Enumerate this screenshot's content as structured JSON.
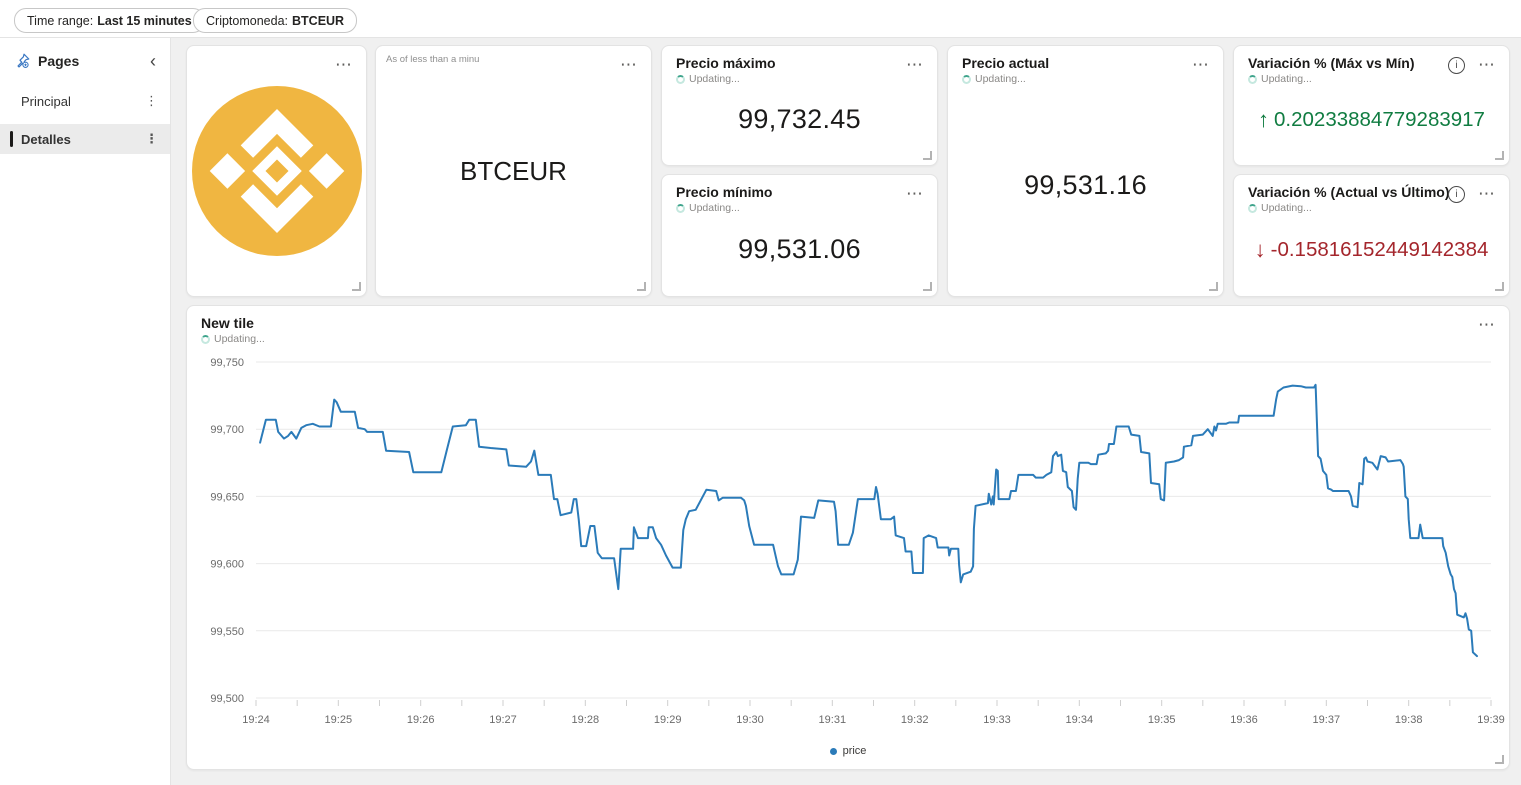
{
  "topbar": {
    "filters": [
      {
        "label": "Time range:",
        "value": "Last 15 minutes"
      },
      {
        "label": "Criptomoneda:",
        "value": "BTCEUR"
      }
    ]
  },
  "sidebar": {
    "title": "Pages",
    "collapse_icon": "‹",
    "item_menu_icon": "⋮",
    "items": [
      {
        "label": "Principal",
        "selected": false
      },
      {
        "label": "Detalles",
        "selected": true
      }
    ]
  },
  "icons": {
    "more_options": "⋯",
    "info": "i"
  },
  "colors": {
    "binance_yellow": "#F0B641",
    "line_blue": "#2b7bb9",
    "positive_green": "#107C41",
    "negative_red": "#A4262C"
  },
  "tiles": {
    "logo": {
      "name": "binance-logo"
    },
    "symbol": {
      "as_of": "As of less than a minu",
      "value": "BTCEUR"
    },
    "max": {
      "title": "Precio máximo",
      "status": "Updating...",
      "value": "99,732.45"
    },
    "min": {
      "title": "Precio mínimo",
      "status": "Updating...",
      "value": "99,531.06"
    },
    "actual": {
      "title": "Precio actual",
      "status": "Updating...",
      "value": "99,531.16"
    },
    "var_max_min": {
      "title": "Variación % (Máx vs Mín)",
      "status": "Updating...",
      "arrow": "↑",
      "value": "0.20233884779283917",
      "color": "#107C41"
    },
    "var_actual": {
      "title": "Variación % (Actual vs Último)",
      "status": "Updating...",
      "arrow": "↓",
      "value": "-0.15816152449142384",
      "color": "#A4262C"
    }
  },
  "chart_tile": {
    "title": "New tile",
    "status": "Updating..."
  },
  "chart_data": {
    "type": "line",
    "title": "New tile",
    "series_name": "price",
    "legend": [
      "price"
    ],
    "legend_position": "bottom-center",
    "grid": true,
    "line_color": "#2b7bb9",
    "ylim": [
      99500,
      99750
    ],
    "xlim_minutes": [
      0,
      15
    ],
    "y_ticks": [
      99750,
      99700,
      99650,
      99600,
      99550,
      99500
    ],
    "y_tick_labels": [
      "99,750",
      "99,700",
      "99,650",
      "99,600",
      "99,550",
      "99,500"
    ],
    "x_ticks": [
      "19:24",
      "19:25",
      "19:26",
      "19:27",
      "19:28",
      "19:29",
      "19:30",
      "19:31",
      "19:32",
      "19:33",
      "19:34",
      "19:35",
      "19:36",
      "19:37",
      "19:38",
      "19:39"
    ],
    "points": [
      [
        0.05,
        99690
      ],
      [
        0.12,
        99707
      ],
      [
        0.24,
        99707
      ],
      [
        0.27,
        99698
      ],
      [
        0.34,
        99693
      ],
      [
        0.39,
        99695
      ],
      [
        0.43,
        99698
      ],
      [
        0.49,
        99693
      ],
      [
        0.55,
        99701
      ],
      [
        0.61,
        99703
      ],
      [
        0.69,
        99704
      ],
      [
        0.77,
        99702
      ],
      [
        0.91,
        99702
      ],
      [
        0.95,
        99722
      ],
      [
        0.98,
        99720
      ],
      [
        1.03,
        99713
      ],
      [
        1.2,
        99713
      ],
      [
        1.24,
        99701
      ],
      [
        1.32,
        99700
      ],
      [
        1.35,
        99698
      ],
      [
        1.54,
        99698
      ],
      [
        1.58,
        99684
      ],
      [
        1.86,
        99683
      ],
      [
        1.91,
        99668
      ],
      [
        2.25,
        99668
      ],
      [
        2.32,
        99685
      ],
      [
        2.39,
        99702
      ],
      [
        2.55,
        99703
      ],
      [
        2.59,
        99707
      ],
      [
        2.67,
        99707
      ],
      [
        2.71,
        99687
      ],
      [
        2.85,
        99686
      ],
      [
        3.04,
        99685
      ],
      [
        3.07,
        99673
      ],
      [
        3.28,
        99672
      ],
      [
        3.34,
        99676
      ],
      [
        3.38,
        99684
      ],
      [
        3.43,
        99666
      ],
      [
        3.58,
        99666
      ],
      [
        3.62,
        99648
      ],
      [
        3.66,
        99648
      ],
      [
        3.7,
        99636
      ],
      [
        3.83,
        99638
      ],
      [
        3.86,
        99648
      ],
      [
        3.89,
        99648
      ],
      [
        3.92,
        99633
      ],
      [
        3.95,
        99613
      ],
      [
        4.01,
        99613
      ],
      [
        4.06,
        99628
      ],
      [
        4.11,
        99628
      ],
      [
        4.15,
        99608
      ],
      [
        4.2,
        99604
      ],
      [
        4.35,
        99604
      ],
      [
        4.4,
        99581
      ],
      [
        4.43,
        99611
      ],
      [
        4.58,
        99611
      ],
      [
        4.59,
        99627
      ],
      [
        4.64,
        99619
      ],
      [
        4.76,
        99619
      ],
      [
        4.77,
        99627
      ],
      [
        4.82,
        99627
      ],
      [
        4.86,
        99619
      ],
      [
        4.92,
        99614
      ],
      [
        4.98,
        99606
      ],
      [
        5.06,
        99597
      ],
      [
        5.16,
        99597
      ],
      [
        5.19,
        99625
      ],
      [
        5.22,
        99633
      ],
      [
        5.26,
        99639
      ],
      [
        5.34,
        99640
      ],
      [
        5.47,
        99655
      ],
      [
        5.59,
        99654
      ],
      [
        5.62,
        99647
      ],
      [
        5.67,
        99649
      ],
      [
        5.89,
        99649
      ],
      [
        5.93,
        99647
      ],
      [
        5.95,
        99643
      ],
      [
        5.99,
        99628
      ],
      [
        6.05,
        99614
      ],
      [
        6.28,
        99614
      ],
      [
        6.34,
        99598
      ],
      [
        6.38,
        99592
      ],
      [
        6.53,
        99592
      ],
      [
        6.58,
        99603
      ],
      [
        6.62,
        99635
      ],
      [
        6.78,
        99634
      ],
      [
        6.83,
        99647
      ],
      [
        7.02,
        99646
      ],
      [
        7.04,
        99639
      ],
      [
        7.07,
        99614
      ],
      [
        7.2,
        99614
      ],
      [
        7.25,
        99623
      ],
      [
        7.31,
        99648
      ],
      [
        7.51,
        99648
      ],
      [
        7.53,
        99657
      ],
      [
        7.55,
        99652
      ],
      [
        7.59,
        99633
      ],
      [
        7.71,
        99633
      ],
      [
        7.75,
        99635
      ],
      [
        7.77,
        99621
      ],
      [
        7.87,
        99619
      ],
      [
        7.89,
        99609
      ],
      [
        7.96,
        99609
      ],
      [
        7.98,
        99593
      ],
      [
        8.1,
        99593
      ],
      [
        8.11,
        99619
      ],
      [
        8.17,
        99621
      ],
      [
        8.26,
        99619
      ],
      [
        8.28,
        99612
      ],
      [
        8.41,
        99612
      ],
      [
        8.42,
        99606
      ],
      [
        8.44,
        99611
      ],
      [
        8.53,
        99611
      ],
      [
        8.54,
        99599
      ],
      [
        8.56,
        99586
      ],
      [
        8.59,
        99592
      ],
      [
        8.68,
        99594
      ],
      [
        8.71,
        99598
      ],
      [
        8.72,
        99626
      ],
      [
        8.74,
        99643
      ],
      [
        8.89,
        99645
      ],
      [
        8.9,
        99652
      ],
      [
        8.93,
        99644
      ],
      [
        8.95,
        99650
      ],
      [
        8.96,
        99644
      ],
      [
        8.99,
        99670
      ],
      [
        9.01,
        99669
      ],
      [
        9.02,
        99648
      ],
      [
        9.15,
        99648
      ],
      [
        9.17,
        99654
      ],
      [
        9.23,
        99654
      ],
      [
        9.26,
        99666
      ],
      [
        9.44,
        99666
      ],
      [
        9.47,
        99664
      ],
      [
        9.56,
        99664
      ],
      [
        9.6,
        99666
      ],
      [
        9.66,
        99668
      ],
      [
        9.68,
        99680
      ],
      [
        9.72,
        99683
      ],
      [
        9.74,
        99680
      ],
      [
        9.78,
        99681
      ],
      [
        9.8,
        99669
      ],
      [
        9.84,
        99668
      ],
      [
        9.86,
        99657
      ],
      [
        9.91,
        99654
      ],
      [
        9.93,
        99642
      ],
      [
        9.96,
        99640
      ],
      [
        9.98,
        99663
      ],
      [
        10.0,
        99675
      ],
      [
        10.11,
        99675
      ],
      [
        10.14,
        99674
      ],
      [
        10.21,
        99674
      ],
      [
        10.23,
        99681
      ],
      [
        10.32,
        99682
      ],
      [
        10.35,
        99684
      ],
      [
        10.36,
        99689
      ],
      [
        10.42,
        99689
      ],
      [
        10.45,
        99702
      ],
      [
        10.6,
        99702
      ],
      [
        10.63,
        99696
      ],
      [
        10.73,
        99695
      ],
      [
        10.75,
        99683
      ],
      [
        10.85,
        99682
      ],
      [
        10.87,
        99660
      ],
      [
        10.97,
        99659
      ],
      [
        10.99,
        99648
      ],
      [
        11.03,
        99647
      ],
      [
        11.05,
        99675
      ],
      [
        11.15,
        99676
      ],
      [
        11.21,
        99677
      ],
      [
        11.26,
        99679
      ],
      [
        11.27,
        99687
      ],
      [
        11.36,
        99688
      ],
      [
        11.38,
        99695
      ],
      [
        11.5,
        99696
      ],
      [
        11.56,
        99700
      ],
      [
        11.62,
        99695
      ],
      [
        11.64,
        99702
      ],
      [
        11.66,
        99699
      ],
      [
        11.68,
        99704
      ],
      [
        11.78,
        99704
      ],
      [
        11.82,
        99705
      ],
      [
        11.93,
        99705
      ],
      [
        11.94,
        99710
      ],
      [
        12.36,
        99710
      ],
      [
        12.39,
        99722
      ],
      [
        12.41,
        99728
      ],
      [
        12.48,
        99731
      ],
      [
        12.59,
        99732.45
      ],
      [
        12.69,
        99732
      ],
      [
        12.75,
        99731
      ],
      [
        12.85,
        99731
      ],
      [
        12.87,
        99733
      ],
      [
        12.9,
        99680
      ],
      [
        12.93,
        99678
      ],
      [
        12.96,
        99669
      ],
      [
        13.0,
        99666
      ],
      [
        13.02,
        99656
      ],
      [
        13.06,
        99655
      ],
      [
        13.08,
        99654
      ],
      [
        13.27,
        99654
      ],
      [
        13.3,
        99650
      ],
      [
        13.32,
        99643
      ],
      [
        13.38,
        99642
      ],
      [
        13.4,
        99660
      ],
      [
        13.44,
        99659
      ],
      [
        13.46,
        99678
      ],
      [
        13.48,
        99679
      ],
      [
        13.5,
        99676
      ],
      [
        13.56,
        99675
      ],
      [
        13.62,
        99670
      ],
      [
        13.66,
        99680
      ],
      [
        13.72,
        99679
      ],
      [
        13.75,
        99676
      ],
      [
        13.9,
        99677
      ],
      [
        13.93,
        99674
      ],
      [
        13.94,
        99672
      ],
      [
        13.96,
        99650
      ],
      [
        13.99,
        99648
      ],
      [
        14.0,
        99633
      ],
      [
        14.02,
        99619
      ],
      [
        14.12,
        99619
      ],
      [
        14.14,
        99629
      ],
      [
        14.17,
        99619
      ],
      [
        14.41,
        99619
      ],
      [
        14.42,
        99613
      ],
      [
        14.45,
        99608
      ],
      [
        14.48,
        99598
      ],
      [
        14.51,
        99592
      ],
      [
        14.53,
        99590
      ],
      [
        14.55,
        99581
      ],
      [
        14.57,
        99578
      ],
      [
        14.59,
        99562
      ],
      [
        14.67,
        99560
      ],
      [
        14.69,
        99563
      ],
      [
        14.71,
        99559
      ],
      [
        14.73,
        99551
      ],
      [
        14.76,
        99550
      ],
      [
        14.78,
        99534
      ],
      [
        14.83,
        99531.16
      ]
    ]
  }
}
